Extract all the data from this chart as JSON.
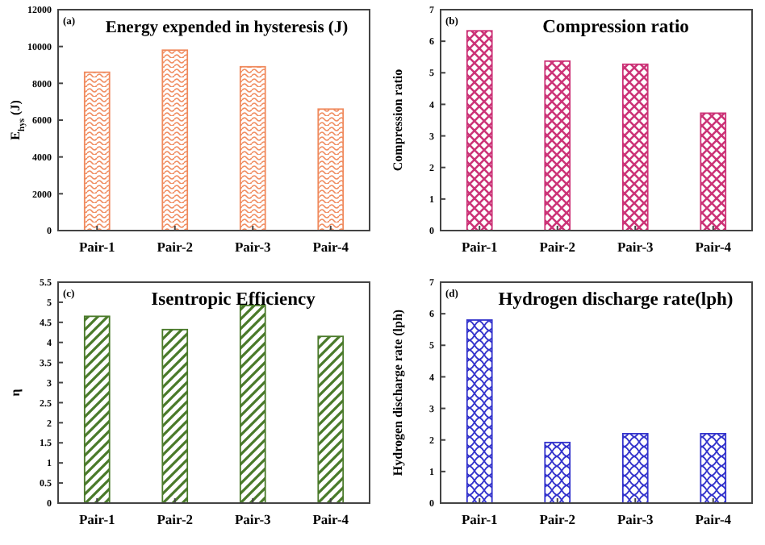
{
  "chart_data": [
    {
      "type": "bar",
      "title": "Energy expended in hysteresis (J)",
      "ylabel": "E$_{hys}$ (J)",
      "annotations": [
        "(a)"
      ],
      "categories": [
        "Pair-1",
        "Pair-2",
        "Pair-3",
        "Pair-4"
      ],
      "values": [
        8600,
        9800,
        8900,
        6600
      ],
      "color": "#f08a5d",
      "ylim": [
        0,
        12000
      ],
      "yticks": [
        0,
        2000,
        4000,
        6000,
        8000,
        10000,
        12000
      ],
      "grid": false
    },
    {
      "type": "bar",
      "title": "Compression ratio",
      "ylabel": "Compression ratio",
      "annotations": [
        "(b)"
      ],
      "categories": [
        "Pair-1",
        "Pair-2",
        "Pair-3",
        "Pair-4"
      ],
      "values": [
        6.33,
        5.37,
        5.27,
        3.72
      ],
      "color": "#cc3377",
      "ylim": [
        0,
        7
      ],
      "yticks": [
        0,
        1,
        2,
        3,
        4,
        5,
        6,
        7
      ],
      "grid": false
    },
    {
      "type": "bar",
      "title": "Isentropic Efficiency",
      "ylabel": "η",
      "annotations": [
        "(c)"
      ],
      "categories": [
        "Pair-1",
        "Pair-2",
        "Pair-3",
        "Pair-4"
      ],
      "values": [
        4.65,
        4.32,
        4.92,
        4.15
      ],
      "color": "#4a7a2a",
      "ylim": [
        0,
        5.5
      ],
      "yticks": [
        0,
        0.5,
        1,
        1.5,
        2,
        2.5,
        3,
        3.5,
        4,
        4.5,
        5,
        5.5
      ],
      "grid": false
    },
    {
      "type": "bar",
      "title": "Hydrogen discharge rate(lph)",
      "ylabel": "Hydrogen discharge rate (lph)",
      "annotations": [
        "(d)"
      ],
      "categories": [
        "Pair-1",
        "Pair-2",
        "Pair-3",
        "Pair-4"
      ],
      "values": [
        5.8,
        1.92,
        2.2,
        2.2
      ],
      "color": "#3333cc",
      "ylim": [
        0,
        7
      ],
      "yticks": [
        0,
        1,
        2,
        3,
        4,
        5,
        6,
        7
      ],
      "grid": false
    }
  ]
}
